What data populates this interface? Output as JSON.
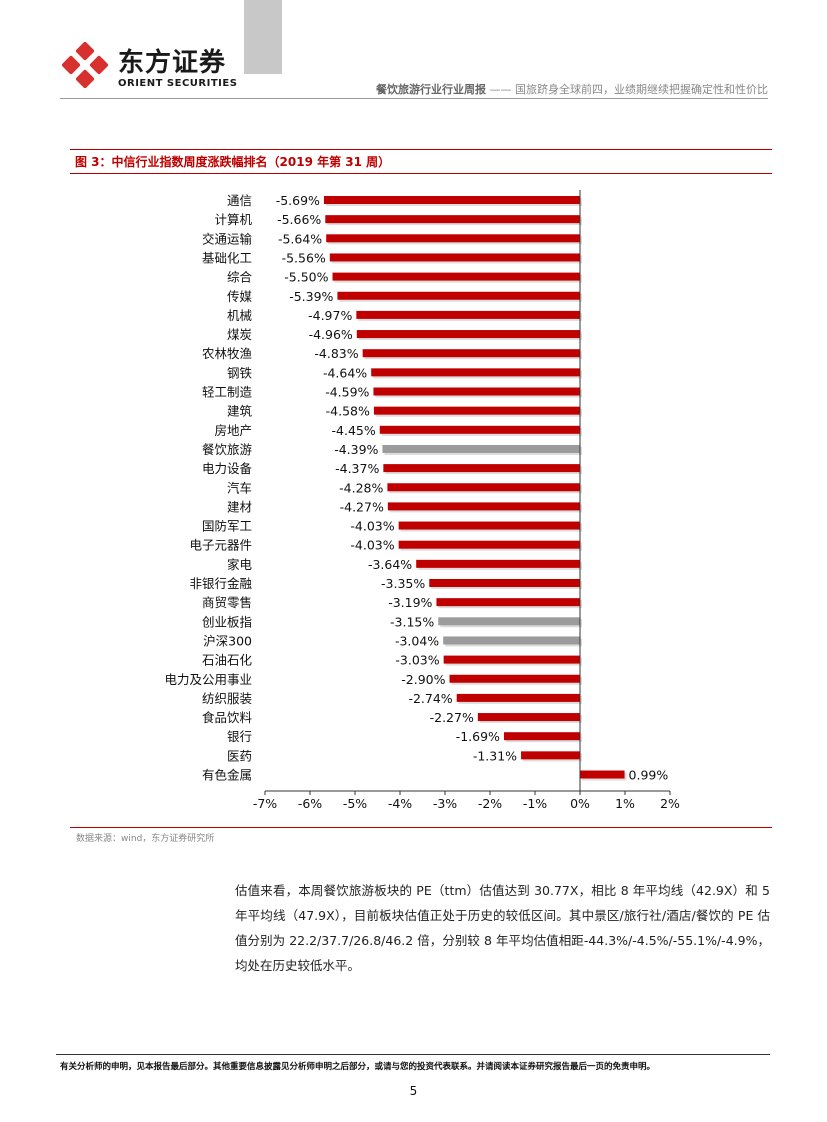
{
  "header": {
    "brand_cn": "东方证券",
    "brand_en": "ORIENT SECURITIES",
    "report_title": "餐饮旅游行业行业周报",
    "report_separator": " —— ",
    "report_subtitle": "国旅跻身全球前四，业绩期继续把握确定性和性价比"
  },
  "figure": {
    "title": "图 3：中信行业指数周度涨跌幅排名（2019 年第 31 周）",
    "source": "数据来源：wind，东方证券研究所"
  },
  "chart_data": {
    "type": "bar",
    "orientation": "horizontal",
    "categories": [
      "通信",
      "计算机",
      "交通运输",
      "基础化工",
      "综合",
      "传媒",
      "机械",
      "煤炭",
      "农林牧渔",
      "钢铁",
      "轻工制造",
      "建筑",
      "房地产",
      "餐饮旅游",
      "电力设备",
      "汽车",
      "建材",
      "国防军工",
      "电子元器件",
      "家电",
      "非银行金融",
      "商贸零售",
      "创业板指",
      "沪深300",
      "石油石化",
      "电力及公用事业",
      "纺织服装",
      "食品饮料",
      "银行",
      "医药",
      "有色金属"
    ],
    "values": [
      -5.69,
      -5.66,
      -5.64,
      -5.56,
      -5.5,
      -5.39,
      -4.97,
      -4.96,
      -4.83,
      -4.64,
      -4.59,
      -4.58,
      -4.45,
      -4.39,
      -4.37,
      -4.28,
      -4.27,
      -4.03,
      -4.03,
      -3.64,
      -3.35,
      -3.19,
      -3.15,
      -3.04,
      -3.03,
      -2.9,
      -2.74,
      -2.27,
      -1.69,
      -1.31,
      0.99
    ],
    "value_labels": [
      "-5.69%",
      "-5.66%",
      "-5.64%",
      "-5.56%",
      "-5.50%",
      "-5.39%",
      "-4.97%",
      "-4.96%",
      "-4.83%",
      "-4.64%",
      "-4.59%",
      "-4.58%",
      "-4.45%",
      "-4.39%",
      "-4.37%",
      "-4.28%",
      "-4.27%",
      "-4.03%",
      "-4.03%",
      "-3.64%",
      "-3.35%",
      "-3.19%",
      "-3.15%",
      "-3.04%",
      "-3.03%",
      "-2.90%",
      "-2.74%",
      "-2.27%",
      "-1.69%",
      "-1.31%",
      "0.99%"
    ],
    "highlight": [
      "餐饮旅游",
      "创业板指",
      "沪深300"
    ],
    "xlim": [
      -7,
      2
    ],
    "xticks": [
      -7,
      -6,
      -5,
      -4,
      -3,
      -2,
      -1,
      0,
      1,
      2
    ],
    "xtick_labels": [
      "-7%",
      "-6%",
      "-5%",
      "-4%",
      "-3%",
      "-2%",
      "-1%",
      "0%",
      "1%",
      "2%"
    ],
    "colors": {
      "bar": "#c00000",
      "highlight": "#9b9b9b",
      "bar_shadow": "#dcdcdc"
    },
    "grid": false,
    "xlabel": "",
    "ylabel": ""
  },
  "body": {
    "paragraph": "估值来看，本周餐饮旅游板块的 PE（ttm）估值达到 30.77X，相比 8 年平均线（42.9X）和 5 年平均线（47.9X），目前板块估值正处于历史的较低区间。其中景区/旅行社/酒店/餐饮的 PE 估值分别为 22.2/37.7/26.8/46.2 倍，分别较 8 年平均估值相距-44.3%/-4.5%/-55.1%/-4.9%，均处在历史较低水平。"
  },
  "footer": {
    "disclaimer": "有关分析师的申明，见本报告最后部分。其他重要信息披露见分析师申明之后部分，或请与您的投资代表联系。并请阅读本证券研究报告最后一页的免责申明。",
    "page_number": "5"
  },
  "colors": {
    "accent": "#c00000",
    "logo": "#d6312e"
  }
}
